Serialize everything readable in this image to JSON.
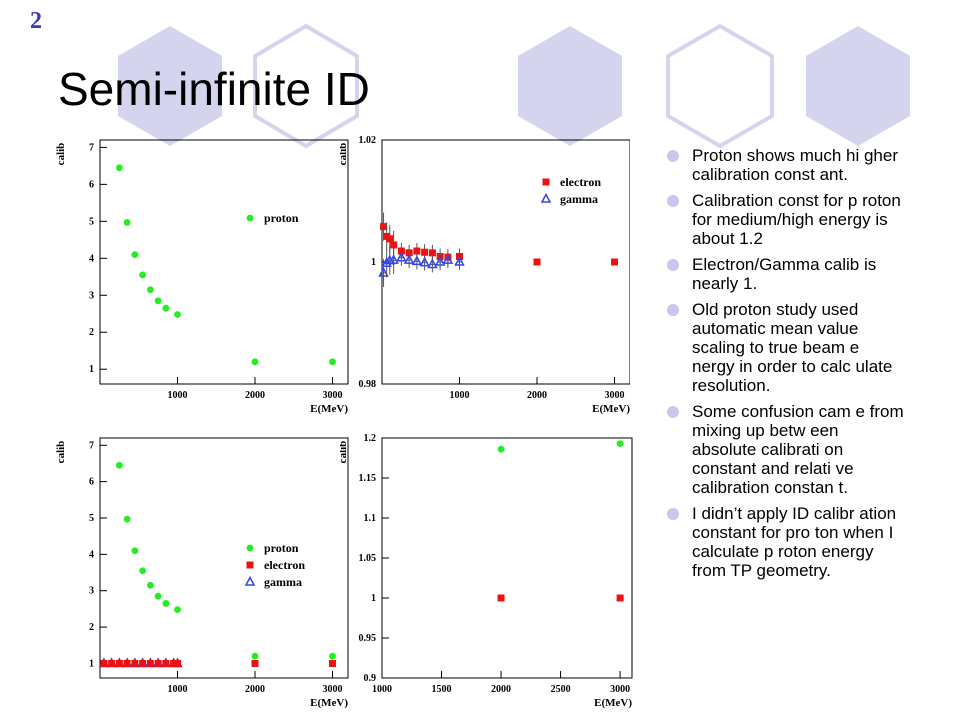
{
  "slide": {
    "page_number": "2",
    "title": "Semi-infinite ID"
  },
  "bullets": [
    "Proton shows much hi gher calibration const ant.",
    "Calibration const for p roton for medium/high energy is about 1.2",
    "Electron/Gamma calib is nearly 1.",
    "Old proton study used automatic mean value scaling to true beam e nergy in order to calc ulate resolution.",
    "Some confusion cam e from mixing up betw een absolute calibrati on constant and relati ve calibration constan t.",
    "I didn’t apply ID calibr ation constant  for pro ton when I calculate p roton energy from TP geometry."
  ],
  "colors": {
    "hex_fill": "#d4d4ee",
    "hex_stroke": "#d4d4ee",
    "proton": "#22ee22",
    "electron": "#ee1111",
    "gamma": "#3344ee",
    "bullet_dot": "#c8c8ec",
    "page_number": "#3b3bb0"
  },
  "chart_data": [
    {
      "type": "scatter",
      "xlabel": "E(MeV)",
      "ylabel": "calib",
      "xlim": [
        0,
        3200
      ],
      "ylim": [
        0.6,
        7.2
      ],
      "xticks": [
        1000,
        2000,
        3000
      ],
      "yticks": [
        1,
        2,
        3,
        4,
        5,
        6,
        7
      ],
      "ytick_labels": [
        "1",
        "2",
        "3",
        "4",
        "5",
        "6",
        "7"
      ],
      "legend": [
        "proton"
      ],
      "series": [
        {
          "name": "proton",
          "marker": "circle",
          "x": [
            250,
            350,
            450,
            550,
            650,
            750,
            850,
            1000,
            2000,
            3000
          ],
          "y": [
            6.45,
            4.97,
            4.1,
            3.55,
            3.15,
            2.85,
            2.65,
            2.48,
            1.2,
            1.2
          ]
        }
      ]
    },
    {
      "type": "scatter",
      "xlabel": "E(MeV)",
      "ylabel": "calib",
      "xlim": [
        0,
        3200
      ],
      "ylim": [
        0.98,
        1.02
      ],
      "xticks": [
        1000,
        2000,
        3000
      ],
      "yticks": [
        0.98,
        1,
        1.02
      ],
      "ytick_labels": [
        "0.98",
        "1",
        "1.02"
      ],
      "legend": [
        "electron",
        "gamma"
      ],
      "series": [
        {
          "name": "electron",
          "marker": "square",
          "x": [
            20,
            60,
            100,
            150,
            250,
            350,
            450,
            550,
            650,
            750,
            850,
            1000,
            2000,
            3000
          ],
          "y": [
            1.0058,
            1.0042,
            1.0038,
            1.0028,
            1.0018,
            1.0015,
            1.0018,
            1.0016,
            1.0015,
            1.0009,
            1.0008,
            1.0009,
            1.0,
            1.0
          ]
        },
        {
          "name": "gamma",
          "marker": "triangle",
          "x": [
            20,
            60,
            100,
            150,
            250,
            350,
            450,
            550,
            650,
            750,
            850,
            1000
          ],
          "y": [
            0.9982,
            0.9998,
            1.0002,
            1.0003,
            1.0007,
            1.0003,
            1.0001,
            0.9999,
            0.9996,
            1.0,
            1.0003,
            1.0
          ]
        }
      ]
    },
    {
      "type": "scatter",
      "xlabel": "E(MeV)",
      "ylabel": "calib",
      "xlim": [
        0,
        3200
      ],
      "ylim": [
        0.6,
        7.2
      ],
      "xticks": [
        1000,
        2000,
        3000
      ],
      "yticks": [
        1,
        2,
        3,
        4,
        5,
        6,
        7
      ],
      "ytick_labels": [
        "1",
        "2",
        "3",
        "4",
        "5",
        "6",
        "7"
      ],
      "legend": [
        "proton",
        "electron",
        "gamma"
      ],
      "series": [
        {
          "name": "proton",
          "marker": "circle",
          "x": [
            250,
            350,
            450,
            550,
            650,
            750,
            850,
            1000,
            2000,
            3000
          ],
          "y": [
            6.45,
            4.97,
            4.1,
            3.55,
            3.15,
            2.85,
            2.65,
            2.48,
            1.2,
            1.2
          ]
        },
        {
          "name": "gamma",
          "marker": "triangle",
          "x": [
            50,
            150,
            250,
            350,
            450,
            550,
            650,
            750,
            850,
            950,
            1000
          ],
          "y": [
            1.0,
            1.0,
            1.0,
            1.0,
            1.0,
            1.0,
            1.0,
            1.0,
            1.0,
            1.0,
            1.0
          ]
        },
        {
          "name": "electron",
          "marker": "square",
          "x": [
            50,
            150,
            250,
            350,
            450,
            550,
            650,
            750,
            850,
            950,
            1000,
            2000,
            3000
          ],
          "y": [
            1.0,
            1.0,
            1.0,
            1.0,
            1.0,
            1.0,
            1.0,
            1.0,
            1.0,
            1.0,
            1.0,
            1.0,
            1.0
          ]
        }
      ]
    },
    {
      "type": "scatter",
      "xlabel": "E(MeV)",
      "ylabel": "calib",
      "xlim": [
        1000,
        3100
      ],
      "ylim": [
        0.9,
        1.2
      ],
      "xticks": [
        1000,
        1500,
        2000,
        2500,
        3000
      ],
      "yticks": [
        0.9,
        0.95,
        1,
        1.05,
        1.1,
        1.15,
        1.2
      ],
      "ytick_labels": [
        "0.9",
        "0.95",
        "1",
        "1.05",
        "1.1",
        "1.15",
        "1.2"
      ],
      "legend": [],
      "series": [
        {
          "name": "proton",
          "marker": "circle",
          "x": [
            2000,
            3000
          ],
          "y": [
            1.186,
            1.193
          ]
        },
        {
          "name": "electron",
          "marker": "square",
          "x": [
            2000,
            3000
          ],
          "y": [
            1.0,
            1.0
          ]
        }
      ]
    }
  ]
}
